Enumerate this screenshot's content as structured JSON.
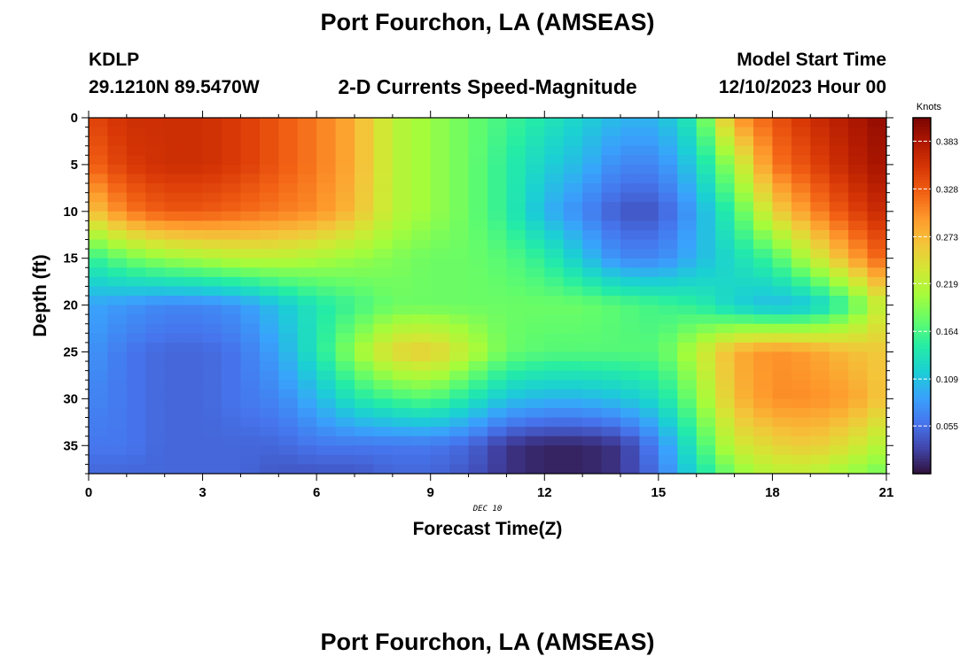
{
  "page": {
    "title": "Port Fourchon, LA (AMSEAS)",
    "station_id": "KDLP",
    "coordinates": "29.1210N  89.5470W",
    "subtitle": "2-D Currents Speed-Magnitude",
    "model_label": "Model Start Time",
    "model_time": "12/10/2023 Hour 00",
    "footer_title": "Port Fourchon, LA (AMSEAS)"
  },
  "chart_data": {
    "type": "heatmap",
    "xlabel": "Forecast Time(Z)",
    "ylabel": "Depth (ft)",
    "date_annotation": "DEC 10",
    "x_range": [
      0,
      21
    ],
    "y_range": [
      0,
      38
    ],
    "y_inverted": true,
    "x_ticks": [
      0,
      3,
      6,
      9,
      12,
      15,
      18,
      21
    ],
    "y_ticks": [
      0,
      5,
      10,
      15,
      20,
      25,
      30,
      35
    ],
    "colorbar": {
      "label": "Knots",
      "range": [
        0,
        0.41
      ],
      "ticks": [
        "0.383",
        "0.328",
        "0.273",
        "0.219",
        "0.164",
        "0.109",
        "0.055"
      ],
      "colormap": [
        "#30123b",
        "#4145ab",
        "#4675ed",
        "#39a2fc",
        "#1bcfd4",
        "#24eca6",
        "#61fc6c",
        "#a4fc3b",
        "#d1e834",
        "#f3c63a",
        "#fe9b2d",
        "#f36315",
        "#d93806",
        "#b11901",
        "#7a0403"
      ]
    },
    "times": [
      0,
      1,
      2,
      3,
      4,
      5,
      6,
      7,
      8,
      9,
      10,
      11,
      12,
      13,
      14,
      15,
      16,
      17,
      18,
      19,
      20,
      21
    ],
    "depths": [
      0,
      5,
      10,
      15,
      20,
      25,
      30,
      35,
      38
    ],
    "speed_knots": [
      [
        0.34,
        0.36,
        0.36,
        0.36,
        0.35,
        0.33,
        0.31,
        0.28,
        0.22,
        0.2,
        0.18,
        0.16,
        0.14,
        0.12,
        0.1,
        0.1,
        0.15,
        0.29,
        0.33,
        0.36,
        0.38,
        0.4
      ],
      [
        0.32,
        0.35,
        0.36,
        0.36,
        0.35,
        0.33,
        0.31,
        0.28,
        0.22,
        0.2,
        0.18,
        0.15,
        0.12,
        0.1,
        0.07,
        0.07,
        0.12,
        0.21,
        0.31,
        0.34,
        0.37,
        0.39
      ],
      [
        0.26,
        0.31,
        0.33,
        0.33,
        0.32,
        0.31,
        0.3,
        0.27,
        0.22,
        0.2,
        0.18,
        0.15,
        0.1,
        0.07,
        0.04,
        0.04,
        0.09,
        0.16,
        0.25,
        0.3,
        0.34,
        0.37
      ],
      [
        0.15,
        0.18,
        0.2,
        0.21,
        0.22,
        0.22,
        0.21,
        0.2,
        0.19,
        0.18,
        0.18,
        0.17,
        0.15,
        0.11,
        0.07,
        0.07,
        0.1,
        0.13,
        0.16,
        0.22,
        0.28,
        0.33
      ],
      [
        0.09,
        0.08,
        0.07,
        0.07,
        0.08,
        0.11,
        0.14,
        0.16,
        0.18,
        0.18,
        0.18,
        0.18,
        0.18,
        0.18,
        0.17,
        0.16,
        0.15,
        0.12,
        0.1,
        0.11,
        0.16,
        0.24
      ],
      [
        0.08,
        0.06,
        0.05,
        0.05,
        0.06,
        0.09,
        0.14,
        0.2,
        0.25,
        0.26,
        0.22,
        0.18,
        0.17,
        0.17,
        0.17,
        0.17,
        0.22,
        0.28,
        0.3,
        0.29,
        0.27,
        0.26
      ],
      [
        0.07,
        0.06,
        0.05,
        0.05,
        0.06,
        0.07,
        0.1,
        0.14,
        0.16,
        0.17,
        0.14,
        0.11,
        0.1,
        0.1,
        0.11,
        0.13,
        0.19,
        0.27,
        0.3,
        0.3,
        0.29,
        0.26
      ],
      [
        0.06,
        0.06,
        0.05,
        0.05,
        0.05,
        0.05,
        0.06,
        0.06,
        0.06,
        0.06,
        0.05,
        0.02,
        0.01,
        0.01,
        0.02,
        0.07,
        0.15,
        0.23,
        0.25,
        0.26,
        0.24,
        0.21
      ],
      [
        0.05,
        0.05,
        0.05,
        0.05,
        0.05,
        0.04,
        0.04,
        0.04,
        0.05,
        0.05,
        0.04,
        0.02,
        0.01,
        0.01,
        0.02,
        0.06,
        0.13,
        0.19,
        0.22,
        0.22,
        0.2,
        0.18
      ]
    ]
  }
}
